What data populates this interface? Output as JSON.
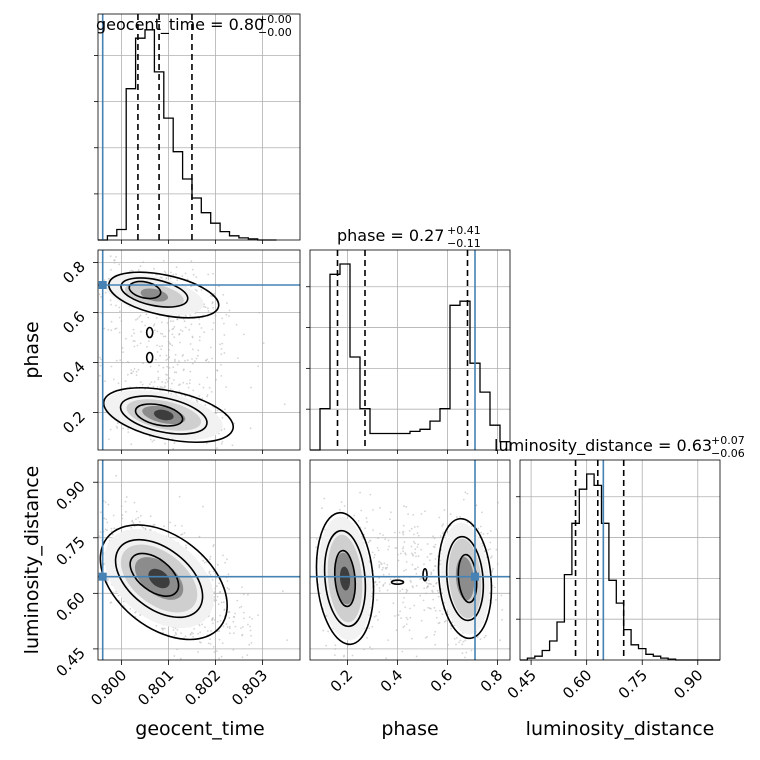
{
  "chart_data": {
    "type": "scatter",
    "kind": "corner plot",
    "parameters": [
      {
        "name": "geocent_time",
        "axis_label": "geocent_time",
        "range": [
          0.7995,
          0.8038
        ],
        "ticks": [
          "0.800",
          "0.801",
          "0.802",
          "0.803"
        ],
        "tick_values": [
          0.8,
          0.801,
          0.802,
          0.803
        ],
        "truth": 0.7996,
        "quantiles": [
          0.80035,
          0.8008,
          0.8015
        ],
        "title_main": "geocent_time = 0.80",
        "title_sup": "+0.00",
        "title_sub": "−0.00",
        "hist_edges_start": 0.7995,
        "hist_bin_width": 0.0002,
        "hist_values": [
          0,
          0.02,
          0.05,
          0.72,
          0.96,
          1.0,
          0.8,
          0.58,
          0.42,
          0.29,
          0.2,
          0.13,
          0.08,
          0.04,
          0.02,
          0.01,
          0.005,
          0.0,
          0.0
        ]
      },
      {
        "name": "phase",
        "axis_label": "phase",
        "range": [
          0.05,
          0.85
        ],
        "ticks": [
          "0.2",
          "0.4",
          "0.6",
          "0.8"
        ],
        "tick_values": [
          0.2,
          0.4,
          0.6,
          0.8
        ],
        "truth": 0.71,
        "quantiles": [
          0.16,
          0.27,
          0.68
        ],
        "title_main": "phase = 0.27",
        "title_sup": "+0.41",
        "title_sub": "−0.11",
        "hist_edges_start": 0.05,
        "hist_bin_width": 0.04,
        "hist_values": [
          0.0,
          0.2,
          0.85,
          0.9,
          0.45,
          0.2,
          0.08,
          0.08,
          0.08,
          0.08,
          0.09,
          0.1,
          0.14,
          0.2,
          0.7,
          0.72,
          0.42,
          0.28,
          0.12,
          0.04
        ]
      },
      {
        "name": "luminosity_distance",
        "axis_label": "luminosity_distance",
        "range": [
          0.42,
          0.96
        ],
        "ticks": [
          "0.45",
          "0.60",
          "0.75",
          "0.90"
        ],
        "tick_values": [
          0.45,
          0.6,
          0.75,
          0.9
        ],
        "truth": 0.645,
        "quantiles": [
          0.57,
          0.63,
          0.7
        ],
        "title_main": "luminosity_distance = 0.63",
        "title_sup": "+0.07",
        "title_sub": "−0.06",
        "hist_edges_start": 0.42,
        "hist_bin_width": 0.02,
        "hist_values": [
          0.0,
          0.01,
          0.02,
          0.05,
          0.1,
          0.2,
          0.45,
          0.72,
          0.9,
          0.98,
          0.92,
          0.72,
          0.42,
          0.3,
          0.16,
          0.08,
          0.06,
          0.03,
          0.02,
          0.01,
          0.005,
          0.0,
          0.0,
          0.0,
          0.0,
          0.0,
          0.0
        ]
      }
    ],
    "colors": {
      "truth": "#4682b4",
      "contour": "#000000",
      "points": "#b0b0b0",
      "grid": "#b0b0b0"
    }
  }
}
